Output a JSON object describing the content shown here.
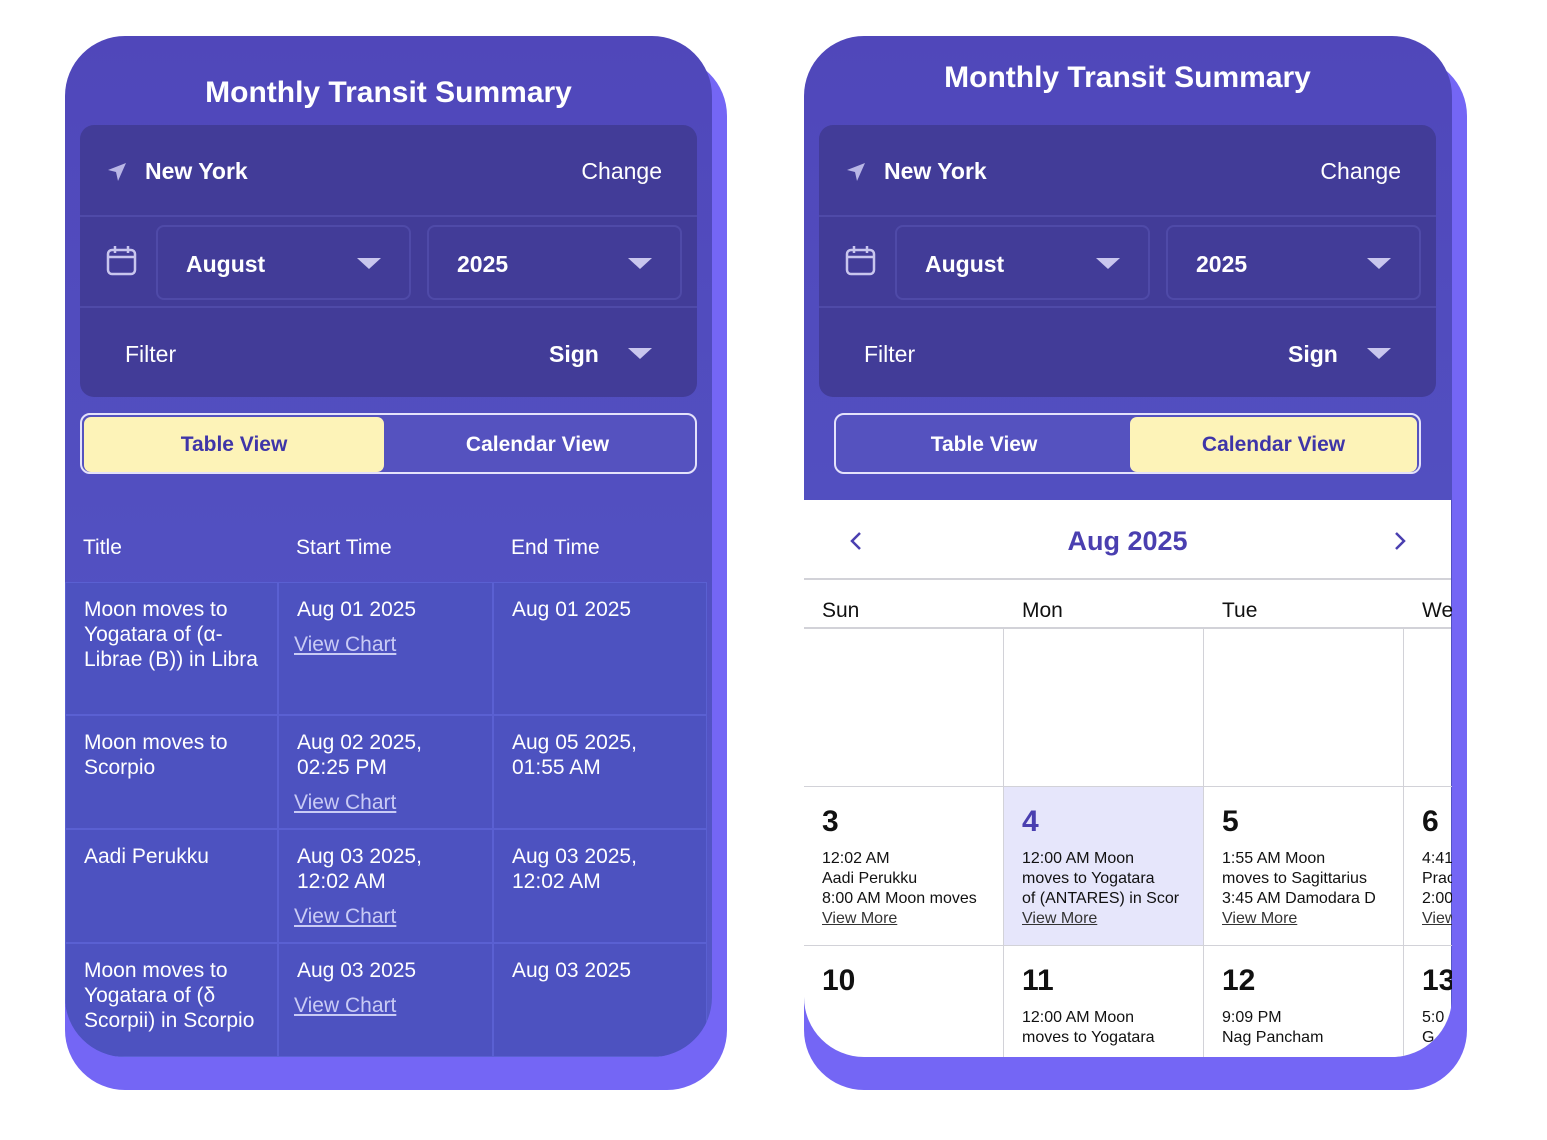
{
  "screens": [
    {
      "title": "Monthly Transit Summary",
      "location": "New York",
      "change": "Change",
      "month": "August",
      "year": "2025",
      "filter_label": "Filter",
      "filter_value": "Sign",
      "tabs": [
        "Table View",
        "Calendar View"
      ],
      "table": {
        "headers": [
          "Title",
          "Start Time",
          "End Time"
        ],
        "rows": [
          {
            "title": "Moon moves to Yogatara of (α-Librae (B)) in Libra",
            "start": "Aug 01 2025",
            "link": "View Chart",
            "end": "Aug 01 2025"
          },
          {
            "title": "Moon moves to Scorpio",
            "start": "Aug 02 2025, 02:25 PM",
            "link": "View Chart",
            "end": "Aug 05 2025, 01:55 AM"
          },
          {
            "title": "Aadi Perukku",
            "start": "Aug 03 2025, 12:02 AM",
            "link": "View Chart",
            "end": "Aug 03 2025, 12:02 AM"
          },
          {
            "title": "Moon moves to Yogatara of (δ Scorpii) in Scorpio",
            "start": "Aug 03 2025",
            "link": "View Chart",
            "end": "Aug 03 2025"
          }
        ]
      }
    },
    {
      "title": "Monthly Transit Summary",
      "location": "New York",
      "change": "Change",
      "month": "August",
      "year": "2025",
      "filter_label": "Filter",
      "filter_value": "Sign",
      "tabs": [
        "Table View",
        "Calendar View"
      ],
      "calendar": {
        "month_label": "Aug 2025",
        "weekdays": [
          "Sun",
          "Mon",
          "Tue",
          "We"
        ],
        "weeks": [
          [
            {
              "day": "3",
              "events": [
                "12:02 AM",
                "Aadi Perukku",
                "8:00 AM Moon moves"
              ],
              "more": "View More"
            },
            {
              "day": "4",
              "events": [
                "12:00 AM Moon",
                "moves to Yogatara",
                "of (ANTARES) in Scor"
              ],
              "more": "View More"
            },
            {
              "day": "5",
              "events": [
                "1:55 AM Moon",
                "moves to Sagittarius",
                "3:45 AM Damodara D"
              ],
              "more": "View More"
            },
            {
              "day": "6",
              "events": [
                "4:41",
                "Prac",
                "2:00"
              ],
              "more": "View"
            }
          ],
          [
            {
              "day": "10",
              "events": []
            },
            {
              "day": "11",
              "events": [
                "12:00 AM Moon",
                "moves to Yogatara"
              ]
            },
            {
              "day": "12",
              "events": [
                "9:09 PM",
                "Nag Pancham"
              ]
            },
            {
              "day": "13",
              "events": [
                "5:0",
                "G"
              ]
            }
          ]
        ]
      }
    }
  ]
}
